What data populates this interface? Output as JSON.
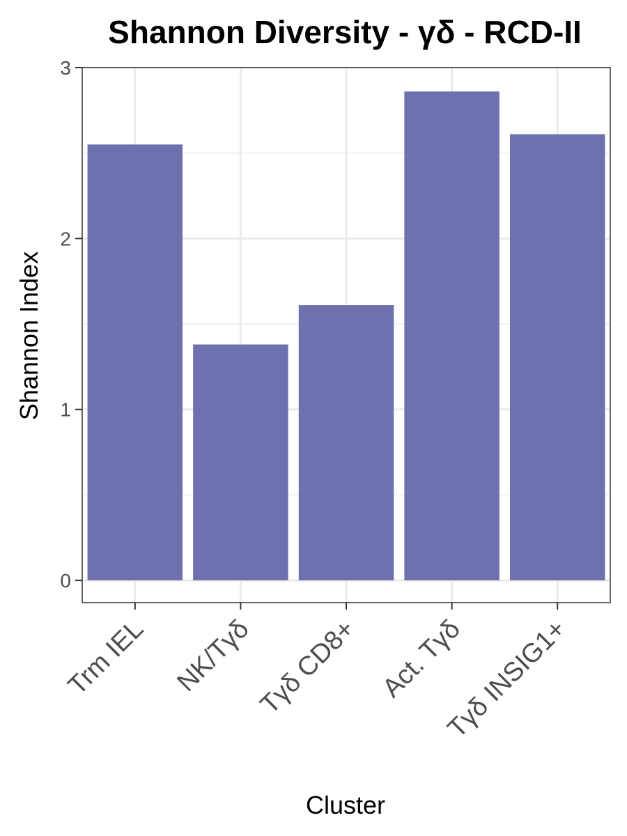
{
  "chart_data": {
    "type": "bar",
    "title": "Shannon Diversity - γδ - RCD-II",
    "xlabel": "Cluster",
    "ylabel": "Shannon Index",
    "categories": [
      "Trm IEL",
      "NK/Tγδ",
      "Tγδ CD8+",
      "Act. Tγδ",
      "Tγδ INSIG1+"
    ],
    "values": [
      2.55,
      1.38,
      1.61,
      2.86,
      2.61
    ],
    "ylim": [
      -0.13,
      3
    ],
    "y_ticks": [
      0,
      1,
      2,
      3
    ],
    "y_tick_labels": [
      "0",
      "1",
      "2",
      "3"
    ],
    "grid": true,
    "legend": "none",
    "bar_color": "#6e71ae",
    "grid_color": "#ebebeb",
    "panel_border_color": "#333333"
  }
}
